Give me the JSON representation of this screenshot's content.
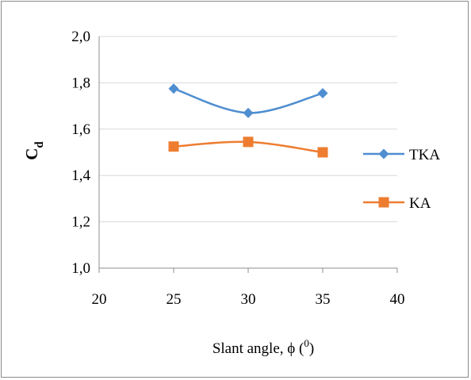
{
  "chart_data": {
    "type": "line",
    "xlabel_text": "Slant angle, ϕ (",
    "xlabel_sup": "0",
    "xlabel_close": ")",
    "ylabel_main": "C",
    "ylabel_sub": "d",
    "xlim": [
      20,
      40
    ],
    "ylim": [
      1.0,
      2.0
    ],
    "xticks": [
      20,
      25,
      30,
      35,
      40
    ],
    "xtick_labels": [
      "20",
      "25",
      "30",
      "35",
      "40"
    ],
    "yticks": [
      1.0,
      1.2,
      1.4,
      1.6,
      1.8,
      2.0
    ],
    "ytick_labels": [
      "1,0",
      "1,2",
      "1,4",
      "1,6",
      "1,8",
      "2,0"
    ],
    "grid": true,
    "legend_position": "right",
    "x": [
      25,
      30,
      35
    ],
    "series": [
      {
        "name": "TKA",
        "values": [
          1.775,
          1.67,
          1.755
        ],
        "color": "#4f8ed0",
        "marker": "diamond"
      },
      {
        "name": "KA",
        "values": [
          1.525,
          1.545,
          1.5
        ],
        "color": "#ee7d31",
        "marker": "square"
      }
    ]
  }
}
